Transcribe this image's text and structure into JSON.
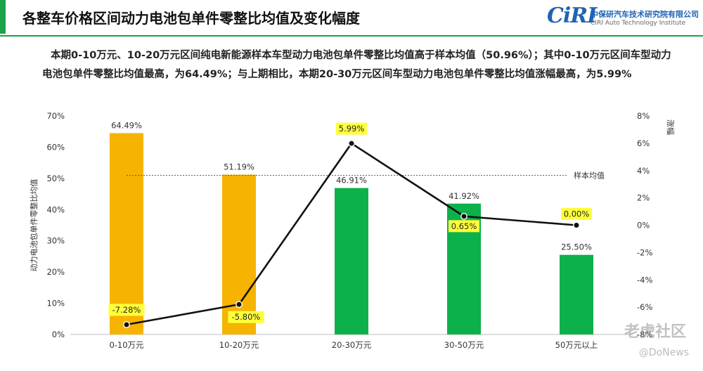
{
  "colors": {
    "brand_green": "#1aa34a",
    "orange_bar": "#f6b400",
    "green_bar": "#0db14b",
    "change_line": "#111111",
    "label_highlight": "#ffff3b",
    "logo_blue": "#1f63b5"
  },
  "header": {
    "title": "各整车价格区间动力电池包单件零整比均值及变化幅度",
    "logo_mark": "CiRI",
    "logo_cn": "中保研汽车技术研究院有限公司",
    "logo_en": "CIRI Auto Technology Institute"
  },
  "summary": "本期0-10万元、10-20万元区间纯电新能源样本车型动力电池包单件零整比均值高于样本均值（50.96%）；其中0-10万元区间车型动力电池包单件零整比均值最高，为64.49%；与上期相比，本期20-30万元区间车型动力电池包单件零整比均值涨幅最高，为5.99%",
  "chart_data": {
    "type": "bar",
    "categories": [
      "0-10万元",
      "10-20万元",
      "20-30万元",
      "30-50万元",
      "50万元以上"
    ],
    "series": [
      {
        "type": "bar",
        "axis": "left",
        "values": [
          64.49,
          51.19,
          46.91,
          41.92,
          25.5
        ],
        "labels": [
          "64.49%",
          "51.19%",
          "46.91%",
          "41.92%",
          "25.50%"
        ],
        "colors": [
          "#f6b400",
          "#f6b400",
          "#0db14b",
          "#0db14b",
          "#0db14b"
        ]
      },
      {
        "type": "line",
        "axis": "right",
        "values": [
          -7.28,
          -5.8,
          5.99,
          0.65,
          0.0
        ],
        "labels": [
          "-7.28%",
          "-5.80%",
          "5.99%",
          "0.65%",
          "0.00%"
        ]
      }
    ],
    "reference_line": {
      "value": 50.96,
      "label": "样本均值"
    },
    "ylabel": "动力电池包单件零整比均值",
    "y2label": "涨幅",
    "ylim": [
      0,
      70
    ],
    "y2lim": [
      -8,
      8
    ],
    "yticks": [
      "0%",
      "10%",
      "20%",
      "30%",
      "40%",
      "50%",
      "60%",
      "70%"
    ],
    "y2ticks": [
      "-8%",
      "-6%",
      "-4%",
      "-2%",
      "0%",
      "2%",
      "4%",
      "6%",
      "8%"
    ],
    "grid": false
  },
  "watermark": {
    "text": "老虎社区",
    "sub": "@DoNews"
  }
}
